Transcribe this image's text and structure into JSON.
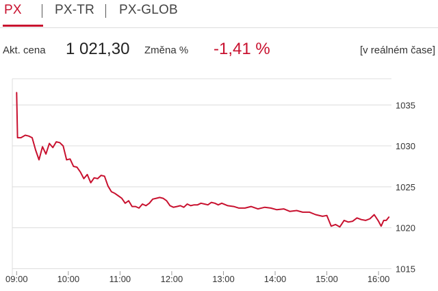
{
  "tabs": [
    {
      "label": "PX",
      "active": true
    },
    {
      "label": "PX-TR",
      "active": false
    },
    {
      "label": "PX-GLOB",
      "active": false
    }
  ],
  "quote": {
    "price_label": "Akt. cena",
    "price": "1 021,30",
    "change_label": "Změna %",
    "change": "-1,41 %",
    "realtime": "[v reálném čase]"
  },
  "colors": {
    "accent": "#c8102e",
    "grid": "#dcdcdc",
    "axis_text": "#333333"
  },
  "chart_data": {
    "type": "line",
    "title": "",
    "xlabel": "",
    "ylabel": "",
    "ylim": [
      1014.2,
      1038.2
    ],
    "xlim": [
      "08:55",
      "16:15"
    ],
    "y_ticks": [
      "1015",
      "1020",
      "1025",
      "1030",
      "1035"
    ],
    "x_ticks": [
      "09:00",
      "10:00",
      "11:00",
      "12:00",
      "13:00",
      "14:00",
      "15:00",
      "16:00"
    ],
    "grid": true,
    "series": [
      {
        "color": "#c8102e",
        "x": [
          "09:00",
          "09:01",
          "09:05",
          "09:10",
          "09:14",
          "09:18",
          "09:22",
          "09:26",
          "09:30",
          "09:34",
          "09:38",
          "09:42",
          "09:46",
          "09:50",
          "09:54",
          "09:58",
          "10:02",
          "10:06",
          "10:10",
          "10:14",
          "10:18",
          "10:22",
          "10:26",
          "10:30",
          "10:34",
          "10:38",
          "10:42",
          "10:46",
          "10:50",
          "10:54",
          "10:58",
          "11:02",
          "11:06",
          "11:10",
          "11:14",
          "11:18",
          "11:22",
          "11:26",
          "11:30",
          "11:34",
          "11:38",
          "11:42",
          "11:46",
          "11:50",
          "11:54",
          "11:58",
          "12:02",
          "12:06",
          "12:10",
          "12:14",
          "12:18",
          "12:22",
          "12:26",
          "12:30",
          "12:34",
          "12:38",
          "12:42",
          "12:46",
          "12:50",
          "12:54",
          "12:58",
          "13:05",
          "13:12",
          "13:18",
          "13:25",
          "13:32",
          "13:40",
          "13:48",
          "13:55",
          "14:02",
          "14:10",
          "14:17",
          "14:25",
          "14:32",
          "14:40",
          "14:47",
          "14:55",
          "15:00",
          "15:05",
          "15:10",
          "15:15",
          "15:20",
          "15:25",
          "15:30",
          "15:35",
          "15:40",
          "15:45",
          "15:50",
          "15:55",
          "16:00",
          "16:03",
          "16:06",
          "16:09",
          "16:12"
        ],
        "values": [
          1036.5,
          1031.0,
          1031.0,
          1031.3,
          1031.2,
          1031.0,
          1029.5,
          1028.3,
          1029.9,
          1029.0,
          1030.3,
          1029.8,
          1030.5,
          1030.4,
          1030.0,
          1028.3,
          1028.4,
          1027.5,
          1027.4,
          1026.8,
          1026.0,
          1026.5,
          1025.5,
          1026.1,
          1026.0,
          1026.4,
          1026.3,
          1025.1,
          1024.4,
          1024.2,
          1023.9,
          1023.6,
          1023.0,
          1023.3,
          1022.6,
          1022.6,
          1022.4,
          1022.9,
          1022.7,
          1023.0,
          1023.5,
          1023.6,
          1023.7,
          1023.6,
          1023.3,
          1022.7,
          1022.5,
          1022.6,
          1022.7,
          1022.5,
          1022.9,
          1022.7,
          1022.8,
          1022.8,
          1023.0,
          1022.9,
          1022.8,
          1023.1,
          1023.0,
          1022.8,
          1023.0,
          1022.7,
          1022.6,
          1022.4,
          1022.4,
          1022.6,
          1022.3,
          1022.5,
          1022.4,
          1022.2,
          1022.3,
          1022.0,
          1022.1,
          1021.9,
          1021.9,
          1021.6,
          1021.4,
          1021.5,
          1020.2,
          1020.4,
          1020.1,
          1020.9,
          1020.7,
          1020.8,
          1021.2,
          1021.0,
          1020.9,
          1021.1,
          1021.6,
          1020.8,
          1020.2,
          1020.9,
          1020.9,
          1021.3
        ]
      }
    ]
  }
}
